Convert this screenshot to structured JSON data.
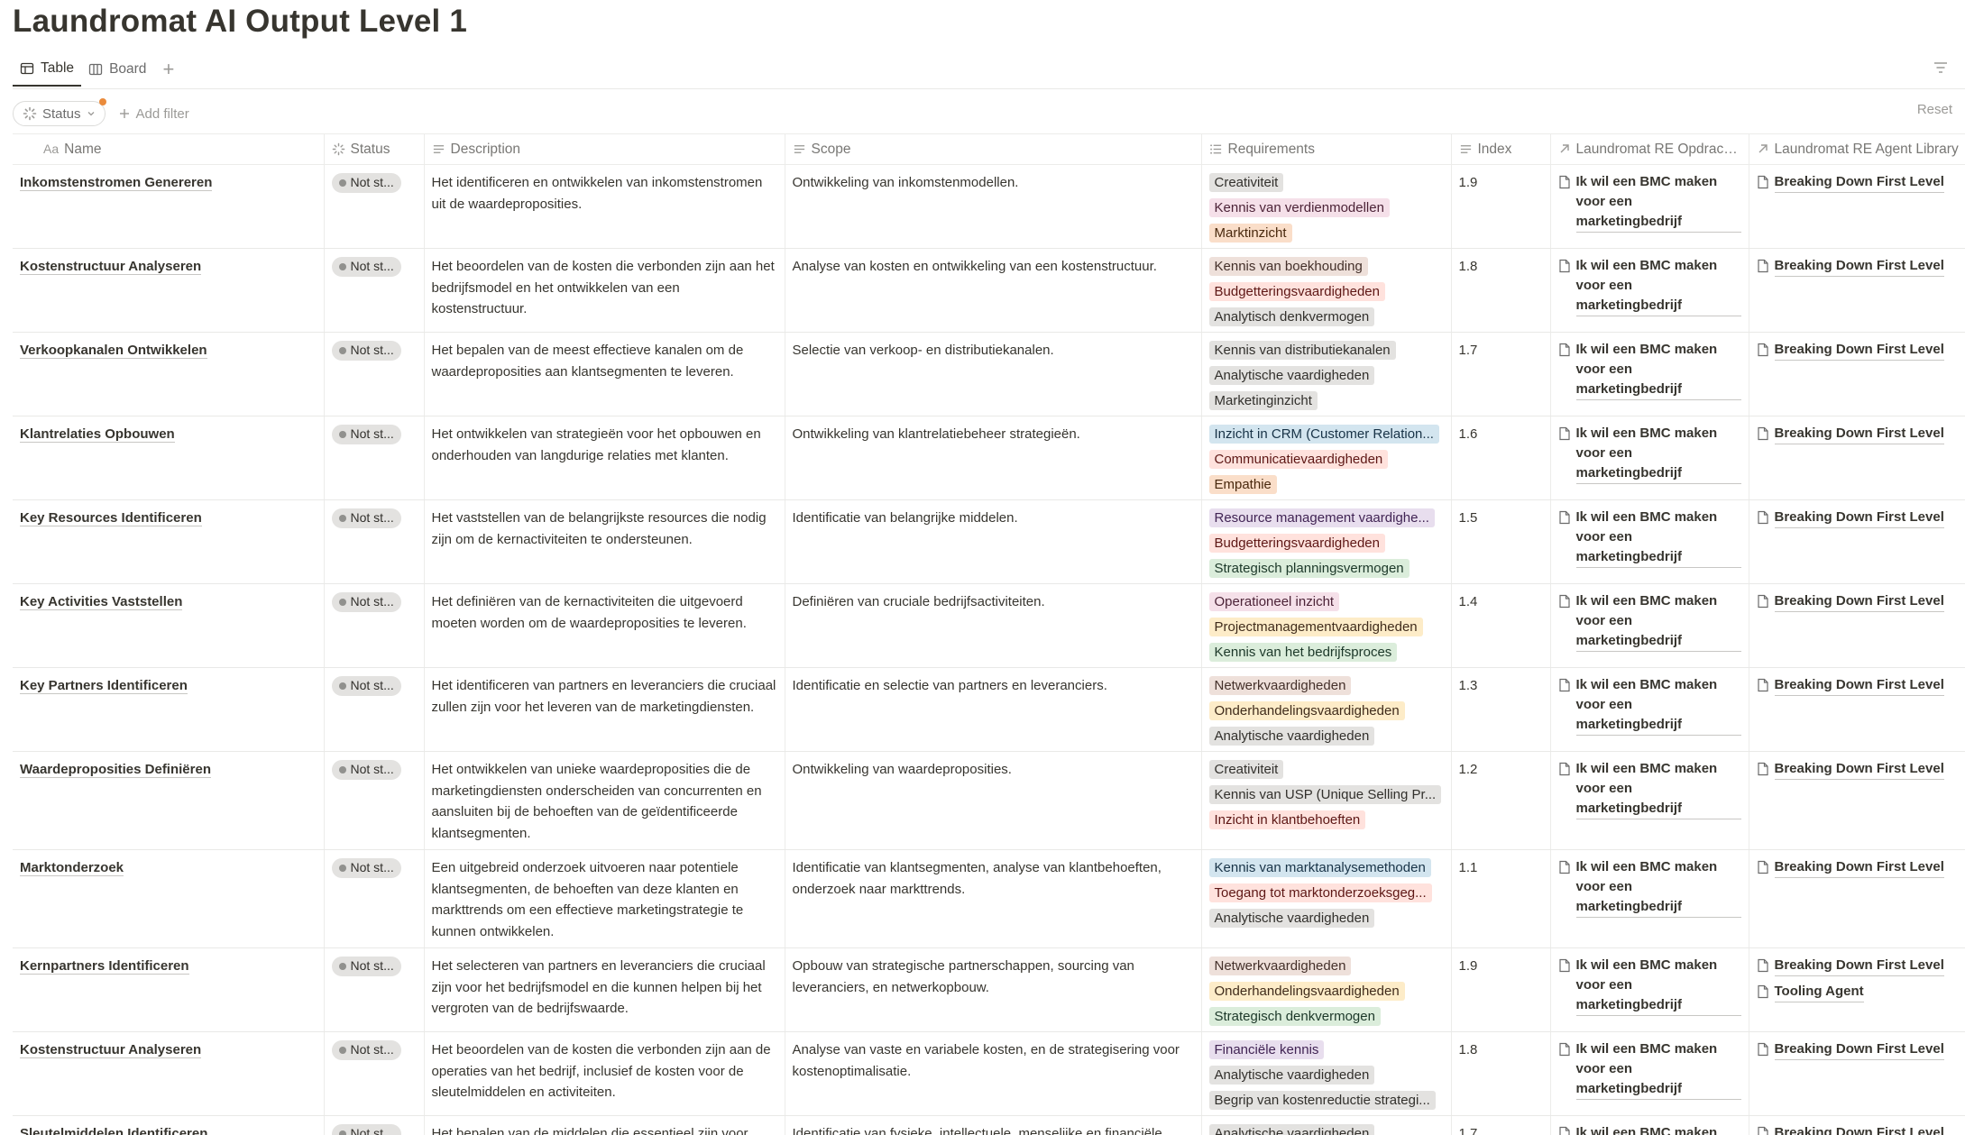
{
  "page": {
    "title": "Laundromat AI Output Level 1"
  },
  "views": {
    "table": "Table",
    "board": "Board",
    "add": "+"
  },
  "filters": {
    "status_chip": "Status",
    "add_filter": "Add filter",
    "reset": "Reset"
  },
  "columns": {
    "name": "Name",
    "status": "Status",
    "description": "Description",
    "scope": "Scope",
    "requirements": "Requirements",
    "index": "Index",
    "opdracht": "Laundromat RE Opdrach...",
    "library": "Laundromat RE Agent Library"
  },
  "tag_colors": {
    "gray": "#e3e2e0",
    "brown": "#eee0da",
    "orange": "#fadec9",
    "yellow": "#fdecc8",
    "green": "#dbeddb",
    "blue": "#d3e5ef",
    "purple": "#e8deee",
    "pink": "#f5e0e9",
    "red": "#ffe2dd"
  },
  "rows": [
    {
      "name": "Inkomstenstromen Genereren",
      "status": "Not st...",
      "description": "Het identificeren en ontwikkelen van inkomstenstromen uit de waardeproposities.",
      "scope": "Ontwikkeling van inkomstenmodellen.",
      "requirements": [
        {
          "label": "Creativiteit",
          "color": "gray"
        },
        {
          "label": "Kennis van verdienmodellen",
          "color": "pink"
        },
        {
          "label": "Marktinzicht",
          "color": "orange"
        }
      ],
      "index": "1.9",
      "opdracht": "Ik wil een BMC maken voor een marketingbedrijf",
      "library": [
        "Breaking Down First Level"
      ]
    },
    {
      "name": "Kostenstructuur Analyseren",
      "status": "Not st...",
      "description": "Het beoordelen van de kosten die verbonden zijn aan het bedrijfsmodel en het ontwikkelen van een kostenstructuur.",
      "scope": "Analyse van kosten en ontwikkeling van een kostenstructuur.",
      "requirements": [
        {
          "label": "Kennis van boekhouding",
          "color": "brown"
        },
        {
          "label": "Budgetteringsvaardigheden",
          "color": "red"
        },
        {
          "label": "Analytisch denkvermogen",
          "color": "gray"
        }
      ],
      "index": "1.8",
      "opdracht": "Ik wil een BMC maken voor een marketingbedrijf",
      "library": [
        "Breaking Down First Level"
      ]
    },
    {
      "name": "Verkoopkanalen Ontwikkelen",
      "status": "Not st...",
      "description": "Het bepalen van de meest effectieve kanalen om de waardeproposities aan klantsegmenten te leveren.",
      "scope": "Selectie van verkoop- en distributiekanalen.",
      "requirements": [
        {
          "label": "Kennis van distributiekanalen",
          "color": "gray"
        },
        {
          "label": "Analytische vaardigheden",
          "color": "gray"
        },
        {
          "label": "Marketinginzicht",
          "color": "gray"
        }
      ],
      "index": "1.7",
      "opdracht": "Ik wil een BMC maken voor een marketingbedrijf",
      "library": [
        "Breaking Down First Level"
      ]
    },
    {
      "name": "Klantrelaties Opbouwen",
      "status": "Not st...",
      "description": "Het ontwikkelen van strategieën voor het opbouwen en onderhouden van langdurige relaties met klanten.",
      "scope": "Ontwikkeling van klantrelatiebeheer strategieën.",
      "requirements": [
        {
          "label": "Inzicht in CRM (Customer Relation...",
          "color": "blue"
        },
        {
          "label": "Communicatievaardigheden",
          "color": "red"
        },
        {
          "label": "Empathie",
          "color": "orange"
        }
      ],
      "index": "1.6",
      "opdracht": "Ik wil een BMC maken voor een marketingbedrijf",
      "library": [
        "Breaking Down First Level"
      ]
    },
    {
      "name": "Key Resources Identificeren",
      "status": "Not st...",
      "description": "Het vaststellen van de belangrijkste resources die nodig zijn om de kernactiviteiten te ondersteunen.",
      "scope": "Identificatie van belangrijke middelen.",
      "requirements": [
        {
          "label": "Resource management vaardighe...",
          "color": "purple"
        },
        {
          "label": "Budgetteringsvaardigheden",
          "color": "red"
        },
        {
          "label": "Strategisch planningsvermogen",
          "color": "green"
        }
      ],
      "index": "1.5",
      "opdracht": "Ik wil een BMC maken voor een marketingbedrijf",
      "library": [
        "Breaking Down First Level"
      ]
    },
    {
      "name": "Key Activities Vaststellen",
      "status": "Not st...",
      "description": "Het definiëren van de kernactiviteiten die uitgevoerd moeten worden om de waardeproposities te leveren.",
      "scope": "Definiëren van cruciale bedrijfsactiviteiten.",
      "requirements": [
        {
          "label": "Operationeel inzicht",
          "color": "pink"
        },
        {
          "label": "Projectmanagementvaardigheden",
          "color": "yellow"
        },
        {
          "label": "Kennis van het bedrijfsproces",
          "color": "green"
        }
      ],
      "index": "1.4",
      "opdracht": "Ik wil een BMC maken voor een marketingbedrijf",
      "library": [
        "Breaking Down First Level"
      ]
    },
    {
      "name": "Key Partners Identificeren",
      "status": "Not st...",
      "description": "Het identificeren van partners en leveranciers die cruciaal zullen zijn voor het leveren van de marketingdiensten.",
      "scope": "Identificatie en selectie van partners en leveranciers.",
      "requirements": [
        {
          "label": "Netwerkvaardigheden",
          "color": "brown"
        },
        {
          "label": "Onderhandelingsvaardigheden",
          "color": "yellow"
        },
        {
          "label": "Analytische vaardigheden",
          "color": "gray"
        }
      ],
      "index": "1.3",
      "opdracht": "Ik wil een BMC maken voor een marketingbedrijf",
      "library": [
        "Breaking Down First Level"
      ]
    },
    {
      "name": "Waardeproposities Definiëren",
      "status": "Not st...",
      "description": "Het ontwikkelen van unieke waardeproposities die de marketingdiensten onderscheiden van concurrenten en aansluiten bij de behoeften van de geïdentificeerde klantsegmenten.",
      "scope": "Ontwikkeling van waardeproposities.",
      "requirements": [
        {
          "label": "Creativiteit",
          "color": "gray"
        },
        {
          "label": "Kennis van USP (Unique Selling Pr...",
          "color": "gray"
        },
        {
          "label": "Inzicht in klantbehoeften",
          "color": "red"
        }
      ],
      "index": "1.2",
      "opdracht": "Ik wil een BMC maken voor een marketingbedrijf",
      "library": [
        "Breaking Down First Level"
      ]
    },
    {
      "name": "Marktonderzoek",
      "status": "Not st...",
      "description": "Een uitgebreid onderzoek uitvoeren naar potentiele klantsegmenten, de behoeften van deze klanten en markttrends om een effectieve marketingstrategie te kunnen ontwikkelen.",
      "scope": "Identificatie van klantsegmenten, analyse van klantbehoeften, onderzoek naar markttrends.",
      "requirements": [
        {
          "label": "Kennis van marktanalysemethoden",
          "color": "blue"
        },
        {
          "label": "Toegang tot marktonderzoeksgeg...",
          "color": "red"
        },
        {
          "label": "Analytische vaardigheden",
          "color": "gray"
        }
      ],
      "index": "1.1",
      "opdracht": "Ik wil een BMC maken voor een marketingbedrijf",
      "library": [
        "Breaking Down First Level"
      ]
    },
    {
      "name": "Kernpartners Identificeren",
      "status": "Not st...",
      "description": "Het selecteren van partners en leveranciers die cruciaal zijn voor het bedrijfsmodel en die kunnen helpen bij het vergroten van de bedrijfswaarde.",
      "scope": "Opbouw van strategische partnerschappen, sourcing van leveranciers, en netwerkopbouw.",
      "requirements": [
        {
          "label": "Netwerkvaardigheden",
          "color": "brown"
        },
        {
          "label": "Onderhandelingsvaardigheden",
          "color": "yellow"
        },
        {
          "label": "Strategisch denkvermogen",
          "color": "green"
        }
      ],
      "index": "1.9",
      "opdracht": "Ik wil een BMC maken voor een marketingbedrijf",
      "library": [
        "Breaking Down First Level",
        "Tooling Agent"
      ]
    },
    {
      "name": "Kostenstructuur Analyseren",
      "status": "Not st...",
      "description": "Het beoordelen van de kosten die verbonden zijn aan de operaties van het bedrijf, inclusief de kosten voor de sleutelmiddelen en activiteiten.",
      "scope": "Analyse van vaste en variabele kosten, en de strategisering voor kostenoptimalisatie.",
      "requirements": [
        {
          "label": "Financiële kennis",
          "color": "purple"
        },
        {
          "label": "Analytische vaardigheden",
          "color": "gray"
        },
        {
          "label": "Begrip van kostenreductie strategi...",
          "color": "gray"
        }
      ],
      "index": "1.8",
      "opdracht": "Ik wil een BMC maken voor een marketingbedrijf",
      "library": [
        "Breaking Down First Level"
      ]
    },
    {
      "name": "Sleutelmiddelen Identificeren",
      "status": "Not st...",
      "description": "Het bepalen van de middelen die essentieel zijn voor",
      "scope": "Identificatie van fysieke, intellectuele, menselijke en financiële",
      "requirements": [
        {
          "label": "Analytische vaardigheden",
          "color": "gray"
        }
      ],
      "index": "1.7",
      "opdracht": "Ik wil een BMC maken voor een marketingbedrijf",
      "library": [
        "Breaking Down First Level"
      ]
    }
  ]
}
